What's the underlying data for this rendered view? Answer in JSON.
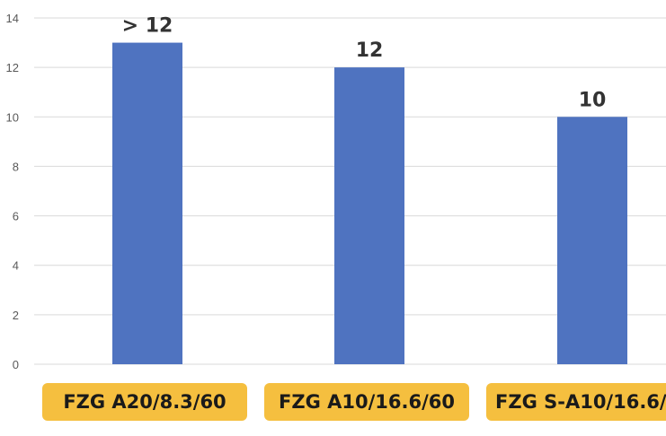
{
  "chart_data": {
    "type": "bar",
    "categories": [
      "FZG A20/8.3/60",
      "FZG A10/16.6/60",
      "FZG S-A10/16.6/"
    ],
    "values": [
      13,
      12,
      10
    ],
    "data_labels": [
      "> 12",
      "12",
      "10"
    ],
    "yticks": [
      "0",
      "2",
      "4",
      "6",
      "8",
      "10",
      "12",
      "14"
    ],
    "ylim": [
      0,
      14
    ],
    "grid": true,
    "bar_color": "#4f73c0",
    "category_box_color": "#f5bf3f",
    "gridline_color": "#d9d9d9"
  }
}
